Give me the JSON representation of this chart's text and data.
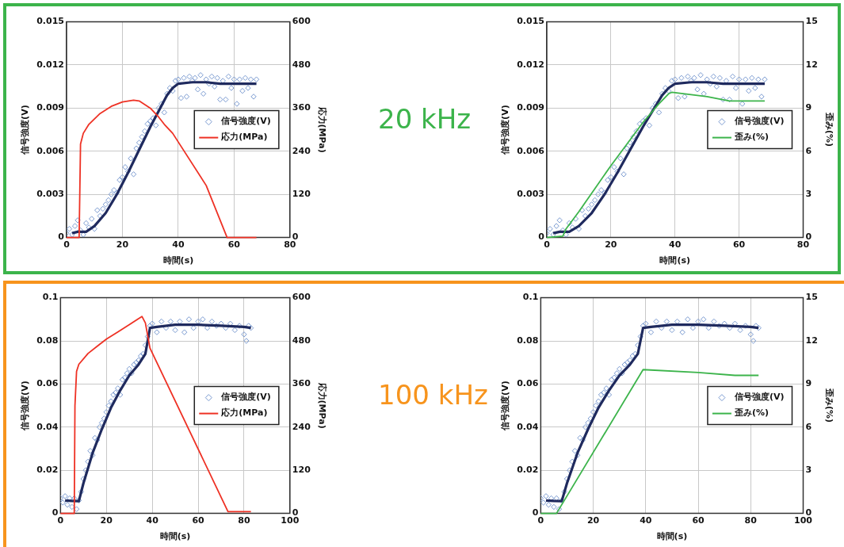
{
  "chart_data": [
    {
      "type": "scatter",
      "xlabel": "時間(s)",
      "ylabel": "信号強度(V)",
      "y2label": "応力(MPa)",
      "annotations": [
        "20 kHz"
      ],
      "xlim": [
        0,
        80
      ],
      "xticks": [
        0,
        20,
        40,
        60,
        80
      ],
      "ylim": [
        0,
        0.015
      ],
      "yticks": [
        0,
        0.003,
        0.006,
        0.009,
        0.012,
        0.015
      ],
      "y2lim": [
        0,
        600
      ],
      "y2ticks": [
        0,
        120,
        240,
        360,
        480,
        600
      ],
      "grid": true,
      "legend": "right",
      "series": [
        {
          "name": "信号強度(V)",
          "type": "scatter",
          "marker": "diamond",
          "color": "#7b9bd1",
          "x": [
            0,
            1,
            2,
            3,
            4,
            5,
            6,
            7,
            8,
            9,
            10,
            11,
            12,
            13,
            14,
            15,
            16,
            17,
            18,
            19,
            20,
            21,
            22,
            23,
            24,
            25,
            26,
            27,
            28,
            29,
            30,
            31,
            32,
            33,
            34,
            35,
            36,
            37,
            38,
            39,
            40,
            41,
            42,
            43,
            44,
            45,
            46,
            47,
            48,
            49,
            50,
            51,
            52,
            53,
            54,
            55,
            56,
            57,
            58,
            59,
            60,
            61,
            62,
            63,
            64,
            65,
            66,
            67,
            68
          ],
          "values": [
            0.0003,
            0.0006,
            0.0002,
            0.0008,
            0.0012,
            0.0005,
            0.0002,
            0.001,
            0.0007,
            0.0013,
            0.0006,
            0.0019,
            0.0015,
            0.002,
            0.0023,
            0.0026,
            0.003,
            0.0033,
            0.0031,
            0.004,
            0.0042,
            0.0049,
            0.0046,
            0.0055,
            0.0044,
            0.0062,
            0.0066,
            0.007,
            0.0074,
            0.0079,
            0.0081,
            0.0083,
            0.0078,
            0.009,
            0.0093,
            0.0087,
            0.01,
            0.0104,
            0.0102,
            0.0109,
            0.011,
            0.0097,
            0.0111,
            0.0098,
            0.0112,
            0.0109,
            0.0111,
            0.0103,
            0.0113,
            0.01,
            0.011,
            0.0107,
            0.0112,
            0.0105,
            0.0111,
            0.0096,
            0.0109,
            0.0096,
            0.0112,
            0.0104,
            0.011,
            0.0093,
            0.011,
            0.0102,
            0.0111,
            0.0104,
            0.011,
            0.0098,
            0.011
          ]
        },
        {
          "type": "line",
          "marker": "none",
          "color": "#1f2a5e",
          "x": [
            2,
            4,
            7,
            10,
            14,
            18,
            22,
            26,
            30,
            33,
            36,
            38,
            40,
            45,
            50,
            55,
            60,
            65,
            68
          ],
          "values": [
            0.0003,
            0.0004,
            0.0004,
            0.0008,
            0.0017,
            0.003,
            0.0045,
            0.0061,
            0.0077,
            0.0088,
            0.0099,
            0.0104,
            0.0107,
            0.0108,
            0.0108,
            0.0107,
            0.0107,
            0.0107,
            0.0107
          ]
        },
        {
          "name": "応力(MPa)",
          "type": "line",
          "marker": "none",
          "axis": "y2",
          "color": "#ee3124",
          "x": [
            0,
            4.5,
            5,
            6,
            8,
            12,
            16,
            20,
            24,
            26,
            30,
            33,
            35,
            38,
            50,
            57.5,
            68
          ],
          "values": [
            0,
            0,
            260,
            290,
            315,
            345,
            365,
            377,
            382,
            380,
            360,
            335,
            315,
            290,
            145,
            0,
            0
          ]
        }
      ]
    },
    {
      "type": "scatter",
      "xlabel": "時間(s)",
      "ylabel": "信号強度(V)",
      "y2label": "歪み(%)",
      "xlim": [
        0,
        80
      ],
      "xticks": [
        0,
        20,
        40,
        60,
        80
      ],
      "ylim": [
        0,
        0.015
      ],
      "yticks": [
        0,
        0.003,
        0.006,
        0.009,
        0.012,
        0.015
      ],
      "y2lim": [
        0,
        15
      ],
      "y2ticks": [
        0,
        3,
        6,
        9,
        12,
        15
      ],
      "grid": true,
      "legend": "right",
      "series": [
        {
          "name": "信号強度(V)",
          "type": "scatter",
          "marker": "diamond",
          "color": "#7b9bd1",
          "x": [
            0,
            1,
            2,
            3,
            4,
            5,
            6,
            7,
            8,
            9,
            10,
            11,
            12,
            13,
            14,
            15,
            16,
            17,
            18,
            19,
            20,
            21,
            22,
            23,
            24,
            25,
            26,
            27,
            28,
            29,
            30,
            31,
            32,
            33,
            34,
            35,
            36,
            37,
            38,
            39,
            40,
            41,
            42,
            43,
            44,
            45,
            46,
            47,
            48,
            49,
            50,
            51,
            52,
            53,
            54,
            55,
            56,
            57,
            58,
            59,
            60,
            61,
            62,
            63,
            64,
            65,
            66,
            67,
            68
          ],
          "values": [
            0.0003,
            0.0006,
            0.0002,
            0.0008,
            0.0012,
            0.0005,
            0.0002,
            0.001,
            0.0007,
            0.0013,
            0.0006,
            0.0019,
            0.0015,
            0.002,
            0.0023,
            0.0026,
            0.003,
            0.0033,
            0.0031,
            0.004,
            0.0042,
            0.0049,
            0.0046,
            0.0055,
            0.0044,
            0.0062,
            0.0066,
            0.007,
            0.0074,
            0.0079,
            0.0081,
            0.0083,
            0.0078,
            0.009,
            0.0093,
            0.0087,
            0.01,
            0.0104,
            0.0102,
            0.0109,
            0.011,
            0.0097,
            0.0111,
            0.0098,
            0.0112,
            0.0109,
            0.0111,
            0.0103,
            0.0113,
            0.01,
            0.011,
            0.0107,
            0.0112,
            0.0105,
            0.0111,
            0.0096,
            0.0109,
            0.0096,
            0.0112,
            0.0104,
            0.011,
            0.0093,
            0.011,
            0.0102,
            0.0111,
            0.0104,
            0.011,
            0.0098,
            0.011
          ]
        },
        {
          "type": "line",
          "marker": "none",
          "color": "#1f2a5e",
          "x": [
            2,
            4,
            7,
            10,
            14,
            18,
            22,
            26,
            30,
            33,
            36,
            38,
            40,
            45,
            50,
            55,
            60,
            65,
            68
          ],
          "values": [
            0.0003,
            0.0004,
            0.0004,
            0.0008,
            0.0017,
            0.003,
            0.0045,
            0.0061,
            0.0077,
            0.0088,
            0.0099,
            0.0104,
            0.0107,
            0.0108,
            0.0108,
            0.0107,
            0.0107,
            0.0107,
            0.0107
          ]
        },
        {
          "name": "歪み(%)",
          "type": "line",
          "marker": "none",
          "axis": "y2",
          "color": "#3cb44b",
          "x": [
            0,
            5,
            6,
            10,
            15,
            20,
            25,
            30,
            35,
            38,
            39,
            50,
            57,
            68
          ],
          "values": [
            0,
            0.1,
            0.6,
            1.8,
            3.4,
            5.0,
            6.5,
            8.0,
            9.3,
            10.0,
            10.1,
            9.8,
            9.5,
            9.5
          ]
        }
      ]
    },
    {
      "type": "scatter",
      "xlabel": "時間(s)",
      "ylabel": "信号強度(V)",
      "y2label": "応力(MPa)",
      "annotations": [
        "100 kHz"
      ],
      "xlim": [
        0,
        100
      ],
      "xticks": [
        0,
        20,
        40,
        60,
        80,
        100
      ],
      "ylim": [
        0,
        0.1
      ],
      "yticks": [
        0,
        0.02,
        0.04,
        0.06,
        0.08,
        0.1
      ],
      "y2lim": [
        0,
        600
      ],
      "y2ticks": [
        0,
        120,
        240,
        360,
        480,
        600
      ],
      "grid": true,
      "legend": "right",
      "series": [
        {
          "name": "信号強度(V)",
          "type": "scatter",
          "marker": "diamond",
          "color": "#7b9bd1",
          "x": [
            0,
            1,
            2,
            3,
            4,
            5,
            6,
            7,
            8,
            9,
            10,
            11,
            12,
            13,
            14,
            15,
            16,
            17,
            18,
            19,
            20,
            21,
            22,
            23,
            24,
            25,
            26,
            27,
            28,
            29,
            30,
            31,
            32,
            33,
            34,
            35,
            36,
            37,
            38,
            39,
            40,
            42,
            44,
            46,
            48,
            50,
            52,
            54,
            56,
            58,
            60,
            62,
            64,
            66,
            68,
            70,
            72,
            74,
            76,
            78,
            80,
            81,
            82,
            83
          ],
          "values": [
            0.007,
            0.005,
            0.008,
            0.004,
            0.007,
            0.003,
            0.007,
            0.002,
            0.006,
            0.01,
            0.016,
            0.02,
            0.024,
            0.029,
            0.027,
            0.035,
            0.034,
            0.04,
            0.042,
            0.044,
            0.047,
            0.05,
            0.052,
            0.055,
            0.056,
            0.058,
            0.055,
            0.062,
            0.063,
            0.065,
            0.067,
            0.065,
            0.069,
            0.07,
            0.071,
            0.073,
            0.074,
            0.078,
            0.082,
            0.087,
            0.088,
            0.084,
            0.089,
            0.086,
            0.089,
            0.085,
            0.089,
            0.084,
            0.09,
            0.086,
            0.089,
            0.09,
            0.086,
            0.089,
            0.087,
            0.088,
            0.086,
            0.088,
            0.085,
            0.087,
            0.083,
            0.08,
            0.087,
            0.086
          ]
        },
        {
          "type": "line",
          "marker": "none",
          "color": "#1f2a5e",
          "x": [
            2,
            5,
            8,
            10,
            14,
            18,
            22,
            26,
            30,
            34,
            37,
            38,
            39,
            42,
            50,
            60,
            70,
            80,
            83
          ],
          "values": [
            0.006,
            0.0058,
            0.0057,
            0.014,
            0.028,
            0.039,
            0.049,
            0.057,
            0.064,
            0.069,
            0.074,
            0.08,
            0.086,
            0.0865,
            0.0875,
            0.0875,
            0.087,
            0.0865,
            0.086
          ]
        },
        {
          "name": "応力(MPa)",
          "type": "line",
          "marker": "none",
          "axis": "y2",
          "color": "#ee3124",
          "x": [
            0,
            6,
            6.3,
            7,
            8,
            12,
            16,
            20,
            25,
            30,
            34,
            35.5,
            37,
            39,
            73,
            83
          ],
          "values": [
            0,
            0,
            300,
            395,
            415,
            445,
            465,
            485,
            505,
            525,
            542,
            548,
            530,
            460,
            5,
            5
          ]
        }
      ]
    },
    {
      "type": "scatter",
      "xlabel": "時間(s)",
      "ylabel": "信号強度(V)",
      "y2label": "歪み(%)",
      "xlim": [
        0,
        100
      ],
      "xticks": [
        0,
        20,
        40,
        60,
        80,
        100
      ],
      "ylim": [
        0,
        0.1
      ],
      "yticks": [
        0,
        0.02,
        0.04,
        0.06,
        0.08,
        0.1
      ],
      "y2lim": [
        0,
        15
      ],
      "y2ticks": [
        0,
        3,
        6,
        9,
        12,
        15
      ],
      "grid": true,
      "legend": "right",
      "series": [
        {
          "name": "信号強度(V)",
          "type": "scatter",
          "marker": "diamond",
          "color": "#7b9bd1",
          "x": [
            0,
            1,
            2,
            3,
            4,
            5,
            6,
            7,
            8,
            9,
            10,
            11,
            12,
            13,
            14,
            15,
            16,
            17,
            18,
            19,
            20,
            21,
            22,
            23,
            24,
            25,
            26,
            27,
            28,
            29,
            30,
            31,
            32,
            33,
            34,
            35,
            36,
            37,
            38,
            39,
            40,
            42,
            44,
            46,
            48,
            50,
            52,
            54,
            56,
            58,
            60,
            62,
            64,
            66,
            68,
            70,
            72,
            74,
            76,
            78,
            80,
            81,
            82,
            83
          ],
          "values": [
            0.007,
            0.005,
            0.008,
            0.004,
            0.007,
            0.003,
            0.007,
            0.002,
            0.006,
            0.01,
            0.016,
            0.02,
            0.024,
            0.029,
            0.027,
            0.035,
            0.034,
            0.04,
            0.042,
            0.044,
            0.047,
            0.05,
            0.052,
            0.055,
            0.056,
            0.058,
            0.055,
            0.062,
            0.063,
            0.065,
            0.067,
            0.065,
            0.069,
            0.07,
            0.071,
            0.073,
            0.074,
            0.078,
            0.082,
            0.087,
            0.088,
            0.084,
            0.089,
            0.086,
            0.089,
            0.085,
            0.089,
            0.084,
            0.09,
            0.086,
            0.089,
            0.09,
            0.086,
            0.089,
            0.087,
            0.088,
            0.086,
            0.088,
            0.085,
            0.087,
            0.083,
            0.08,
            0.087,
            0.086
          ]
        },
        {
          "type": "line",
          "marker": "none",
          "color": "#1f2a5e",
          "x": [
            2,
            5,
            8,
            10,
            14,
            18,
            22,
            26,
            30,
            34,
            37,
            38,
            39,
            42,
            50,
            60,
            70,
            80,
            83
          ],
          "values": [
            0.006,
            0.0058,
            0.0057,
            0.014,
            0.028,
            0.039,
            0.049,
            0.057,
            0.064,
            0.069,
            0.074,
            0.08,
            0.086,
            0.0865,
            0.0875,
            0.0875,
            0.087,
            0.0865,
            0.086
          ]
        },
        {
          "name": "歪み(%)",
          "type": "line",
          "marker": "none",
          "axis": "y2",
          "color": "#3cb44b",
          "x": [
            0,
            6,
            39,
            60,
            74,
            83
          ],
          "values": [
            0,
            0,
            10.0,
            9.8,
            9.6,
            9.6
          ]
        }
      ]
    }
  ]
}
